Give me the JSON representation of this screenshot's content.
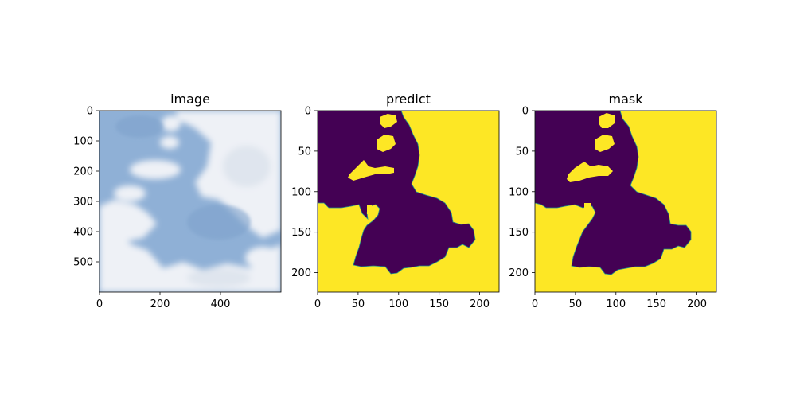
{
  "chart_data": [
    {
      "type": "heatmap",
      "title": "image",
      "xlabel": "",
      "ylabel": "",
      "xlim": [
        0,
        600
      ],
      "ylim": [
        600,
        0
      ],
      "xticks": [
        0,
        200,
        400
      ],
      "yticks": [
        0,
        100,
        200,
        300,
        400,
        500
      ],
      "content": "sky photo with clouds",
      "palette": {
        "sky": "#8fb0d6",
        "sky_dark": "#7ea2cc",
        "cloud": "#eef1f6",
        "cloud_shade": "#dfe5ee"
      }
    },
    {
      "type": "heatmap",
      "title": "predict",
      "xlabel": "",
      "ylabel": "",
      "xlim": [
        0,
        224
      ],
      "ylim": [
        224,
        0
      ],
      "xticks": [
        0,
        50,
        100,
        150,
        200
      ],
      "yticks": [
        0,
        50,
        100,
        150,
        200
      ],
      "colormap": "viridis",
      "classes": {
        "0": "#440154",
        "1": "#fde725"
      },
      "edge_color": "#21918c"
    },
    {
      "type": "heatmap",
      "title": "mask",
      "xlabel": "",
      "ylabel": "",
      "xlim": [
        0,
        224
      ],
      "ylim": [
        224,
        0
      ],
      "xticks": [
        0,
        50,
        100,
        150,
        200
      ],
      "yticks": [
        0,
        50,
        100,
        150,
        200
      ],
      "colormap": "viridis",
      "classes": {
        "0": "#440154",
        "1": "#fde725"
      },
      "edge_color": "#21918c"
    }
  ]
}
